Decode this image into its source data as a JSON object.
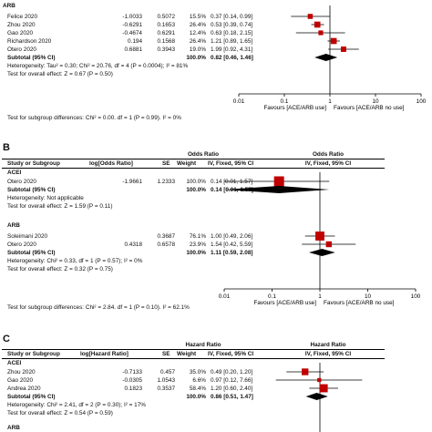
{
  "chart_data": [
    {
      "type": "forest",
      "panel": "",
      "subgroups": [
        {
          "name": "ARB",
          "studies": [
            {
              "label": "Felice 2020",
              "log_value": "-1.0033",
              "se": "0.5072",
              "weight": "15.5%",
              "or": 0.37,
              "lo": 0.14,
              "hi": 0.99,
              "or_text": "0.37 [0.14, 0.99]"
            },
            {
              "label": "Zhou 2020",
              "log_value": "-0.6291",
              "se": "0.1653",
              "weight": "26.4%",
              "or": 0.53,
              "lo": 0.39,
              "hi": 0.74,
              "or_text": "0.53 [0.39, 0.74]"
            },
            {
              "label": "Gao 2020",
              "log_value": "-0.4674",
              "se": "0.6291",
              "weight": "12.4%",
              "or": 0.63,
              "lo": 0.18,
              "hi": 2.15,
              "or_text": "0.63 [0.18, 2.15]"
            },
            {
              "label": "Richardson 2020",
              "log_value": "0.194",
              "se": "0.1568",
              "weight": "26.4%",
              "or": 1.21,
              "lo": 0.89,
              "hi": 1.65,
              "or_text": "1.21 [0.89, 1.65]"
            },
            {
              "label": "Otero 2020",
              "log_value": "0.6881",
              "se": "0.3943",
              "weight": "19.0%",
              "or": 1.99,
              "lo": 0.92,
              "hi": 4.31,
              "or_text": "1.99 [0.92, 4.31]"
            }
          ],
          "subtotal": {
            "label": "Subtotal (95% CI)",
            "weight": "100.0%",
            "or": 0.82,
            "lo": 0.46,
            "hi": 1.46,
            "or_text": "0.82 [0.46, 1.46]"
          },
          "heterogeneity": "Heterogeneity: Tau² = 0.30; Chi² = 20.76, df = 4 (P = 0.0004); I² = 81%",
          "overall": "Test for overall effect: Z = 0.67 (P = 0.50)"
        }
      ],
      "subgroup_test": "Test for subgroup differences: Chi² = 0.00. df = 1 (P = 0.99). I² = 0%",
      "axis": {
        "ticks": [
          0.01,
          0.1,
          1,
          10,
          100
        ],
        "tick_labels": [
          "0.01",
          "0.1",
          "1",
          "10",
          "100"
        ],
        "xlim": [
          0.01,
          100
        ],
        "scale": "log",
        "favours_left": "Favours [ACE/ARB use]",
        "favours_right": "Favours [ACE/ARB no use]"
      }
    },
    {
      "type": "forest",
      "panel": "B",
      "columns": {
        "study": "Study or Subgroup",
        "log": "log[Odds Ratio]",
        "se": "SE",
        "weight": "Weight",
        "effect_top": "Odds Ratio",
        "effect_sub": "IV, Fixed, 95% CI",
        "plot_top": "Odds Ratio",
        "plot_sub": "IV, Fixed, 95% CI"
      },
      "subgroups": [
        {
          "name": "ACEI",
          "studies": [
            {
              "label": "Otero 2020",
              "log_value": "-1.9661",
              "se": "1.2333",
              "weight": "100.0%",
              "or": 0.14,
              "lo": 0.01,
              "hi": 1.57,
              "or_text": "0.14 [0.01, 1.57]"
            }
          ],
          "subtotal": {
            "label": "Subtotal (95% CI)",
            "weight": "100.0%",
            "or": 0.14,
            "lo": 0.01,
            "hi": 1.57,
            "or_text": "0.14 [0.01, 1.57]"
          },
          "heterogeneity": "Heterogeneity: Not applicable",
          "overall": "Test for overall effect: Z = 1.59 (P = 0.11)"
        },
        {
          "name": "ARB",
          "studies": [
            {
              "label": "Soleimani 2020",
              "log_value": "",
              "se": "0.3687",
              "weight": "76.1%",
              "or": 1.0,
              "lo": 0.49,
              "hi": 2.06,
              "or_text": "1.00 [0.49, 2.06]"
            },
            {
              "label": "Otero 2020",
              "log_value": "0.4318",
              "se": "0.6578",
              "weight": "23.9%",
              "or": 1.54,
              "lo": 0.42,
              "hi": 5.59,
              "or_text": "1.54 [0.42, 5.59]"
            }
          ],
          "subtotal": {
            "label": "Subtotal (95% CI)",
            "weight": "100.0%",
            "or": 1.11,
            "lo": 0.59,
            "hi": 2.08,
            "or_text": "1.11 [0.59, 2.08]"
          },
          "heterogeneity": "Heterogeneity: Chi² = 0.33, df = 1 (P = 0.57); I² = 0%",
          "overall": "Test for overall effect: Z = 0.32 (P = 0.75)"
        }
      ],
      "subgroup_test": "Test for subgroup differences: Chi² = 2.84. df = 1 (P = 0.10). I² = 62.1%",
      "axis": {
        "ticks": [
          0.01,
          0.1,
          1,
          10,
          100
        ],
        "tick_labels": [
          "0.01",
          "0.1",
          "1",
          "10",
          "100"
        ],
        "xlim": [
          0.01,
          100
        ],
        "scale": "log",
        "favours_left": "Favours [ACE/ARB use]",
        "favours_right": "Favours [ACE/ARB no use]"
      }
    },
    {
      "type": "forest",
      "panel": "C",
      "columns": {
        "study": "Study or Subgroup",
        "log": "log[Hazard Ratio]",
        "se": "SE",
        "weight": "Weight",
        "effect_top": "Hazard Ratio",
        "effect_sub": "IV, Fixed, 95% CI",
        "plot_top": "Hazard Ratio",
        "plot_sub": "IV, Fixed, 95% CI"
      },
      "subgroups": [
        {
          "name": "ACEI",
          "studies": [
            {
              "label": "Zhou 2020",
              "log_value": "-0.7133",
              "se": "0.457",
              "weight": "35.0%",
              "or": 0.49,
              "lo": 0.2,
              "hi": 1.2,
              "or_text": "0.49 [0.20, 1.20]"
            },
            {
              "label": "Gao 2020",
              "log_value": "-0.0305",
              "se": "1.0543",
              "weight": "6.6%",
              "or": 0.97,
              "lo": 0.12,
              "hi": 7.66,
              "or_text": "0.97 [0.12, 7.66]"
            },
            {
              "label": "Andrea 2020",
              "log_value": "0.1823",
              "se": "0.3537",
              "weight": "58.4%",
              "or": 1.2,
              "lo": 0.6,
              "hi": 2.4,
              "or_text": "1.20 [0.60, 2.40]"
            }
          ],
          "subtotal": {
            "label": "Subtotal (95% CI)",
            "weight": "100.0%",
            "or": 0.86,
            "lo": 0.51,
            "hi": 1.47,
            "or_text": "0.86 [0.51, 1.47]"
          },
          "heterogeneity": "Heterogeneity: Chi² = 2.41, df = 2 (P = 0.30); I² = 17%",
          "overall": "Test for overall effect: Z = 0.54 (P = 0.59)"
        },
        {
          "name": "ARB",
          "studies": []
        }
      ]
    }
  ]
}
